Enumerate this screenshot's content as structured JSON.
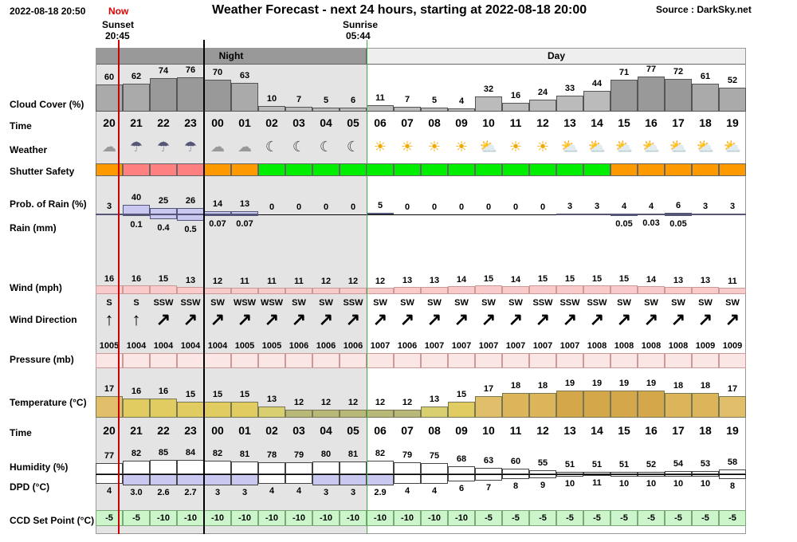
{
  "header": {
    "datetime": "2022-08-18 20:50",
    "now_label": "Now",
    "title": "Weather Forecast - next 24 hours, starting at 2022-08-18 20:00",
    "source": "Source : DarkSky.net",
    "sunset_label": "Sunset",
    "sunset_time": "20:45",
    "sunrise_label": "Sunrise",
    "sunrise_time": "05:44",
    "night_label": "Night",
    "day_label": "Day"
  },
  "labels": {
    "cloud": "Cloud Cover (%)",
    "time": "Time",
    "weather": "Weather",
    "shutter": "Shutter Safety",
    "rain_prob": "Prob. of Rain (%)",
    "rain_mm": "Rain (mm)",
    "wind": "Wind (mph)",
    "wind_dir": "Wind Direction",
    "pressure": "Pressure (mb)",
    "temperature": "Temperature (°C)",
    "time2": "Time",
    "humidity": "Humidity (%)",
    "dpd": "DPD (°C)",
    "ccd": "CCD Set Point (°C)"
  },
  "colors": {
    "now_line": "#cc0000",
    "night_bg": "#e4e4e4",
    "shutter_orange": "#ff9900",
    "shutter_red": "#ff8080",
    "shutter_green": "#00ee00",
    "wind_fill": "#f8caca",
    "rain_fill": "#c8c8f0",
    "ccd_fill": "#ccf5cc"
  },
  "hours": [
    "20",
    "21",
    "22",
    "23",
    "00",
    "01",
    "02",
    "03",
    "04",
    "05",
    "06",
    "07",
    "08",
    "09",
    "10",
    "11",
    "12",
    "13",
    "14",
    "15",
    "16",
    "17",
    "18",
    "19"
  ],
  "cloud": [
    60,
    62,
    74,
    76,
    70,
    63,
    10,
    7,
    5,
    6,
    11,
    7,
    5,
    4,
    32,
    16,
    24,
    33,
    44,
    71,
    77,
    72,
    61,
    52
  ],
  "weather_icons": [
    "partly-cloudy-night",
    "rain",
    "rain",
    "rain",
    "partly-cloudy-night",
    "partly-cloudy-night",
    "clear-night",
    "clear-night",
    "clear-night",
    "clear-night",
    "clear-day",
    "clear-day",
    "clear-day",
    "clear-day",
    "partly-cloudy-day",
    "clear-day",
    "clear-day",
    "partly-cloudy-day",
    "partly-cloudy-day",
    "partly-cloudy-day",
    "partly-cloudy-day",
    "partly-cloudy-day",
    "partly-cloudy-day",
    "partly-cloudy-day"
  ],
  "shutter": [
    "orange",
    "red",
    "red",
    "red",
    "orange",
    "orange",
    "green",
    "green",
    "green",
    "green",
    "green",
    "green",
    "green",
    "green",
    "green",
    "green",
    "green",
    "green",
    "green",
    "orange",
    "orange",
    "orange",
    "orange",
    "orange"
  ],
  "rain_prob": [
    3,
    40,
    25,
    26,
    14,
    13,
    0,
    0,
    0,
    0,
    5,
    0,
    0,
    0,
    0,
    0,
    0,
    3,
    3,
    4,
    4,
    6,
    3,
    3
  ],
  "rain_mm": [
    "",
    "0.1",
    "0.4",
    "0.5",
    "0.07",
    "0.07",
    "",
    "",
    "",
    "",
    "",
    "",
    "",
    "",
    "",
    "",
    "",
    "",
    "",
    "0.05",
    "0.03",
    "0.05",
    "",
    ""
  ],
  "wind": [
    16,
    16,
    15,
    13,
    12,
    11,
    11,
    11,
    12,
    12,
    12,
    13,
    13,
    14,
    15,
    14,
    15,
    15,
    15,
    15,
    14,
    13,
    13,
    11
  ],
  "wind_dir": [
    "S",
    "S",
    "SSW",
    "SSW",
    "SW",
    "WSW",
    "WSW",
    "SW",
    "SW",
    "SSW",
    "SW",
    "SW",
    "SW",
    "SW",
    "SW",
    "SW",
    "SSW",
    "SSW",
    "SSW",
    "SW",
    "SW",
    "SW",
    "SW",
    "SW"
  ],
  "pressure": [
    1005,
    1004,
    1004,
    1004,
    1004,
    1005,
    1005,
    1006,
    1006,
    1006,
    1007,
    1006,
    1007,
    1007,
    1007,
    1007,
    1007,
    1007,
    1008,
    1008,
    1008,
    1008,
    1009,
    1009
  ],
  "temperature": [
    17,
    16,
    16,
    15,
    15,
    15,
    13,
    12,
    12,
    12,
    12,
    12,
    13,
    15,
    17,
    18,
    18,
    19,
    19,
    19,
    19,
    18,
    18,
    17
  ],
  "humidity": [
    77,
    82,
    85,
    84,
    82,
    81,
    78,
    79,
    80,
    81,
    82,
    79,
    75,
    68,
    63,
    60,
    55,
    51,
    51,
    51,
    52,
    54,
    53,
    58
  ],
  "dpd": [
    "4",
    "3.0",
    "2.6",
    "2.7",
    "3",
    "3",
    "4",
    "4",
    "3",
    "3",
    "2.9",
    "4",
    "4",
    "6",
    "7",
    "8",
    "9",
    "10",
    "11",
    "10",
    "10",
    "10",
    "10",
    "8"
  ],
  "ccd": [
    -5,
    -5,
    -10,
    -10,
    -10,
    -10,
    -10,
    -10,
    -10,
    -10,
    -10,
    -10,
    -10,
    -10,
    -5,
    -5,
    -5,
    -5,
    -5,
    -5,
    -5,
    -5,
    -5,
    -5
  ]
}
